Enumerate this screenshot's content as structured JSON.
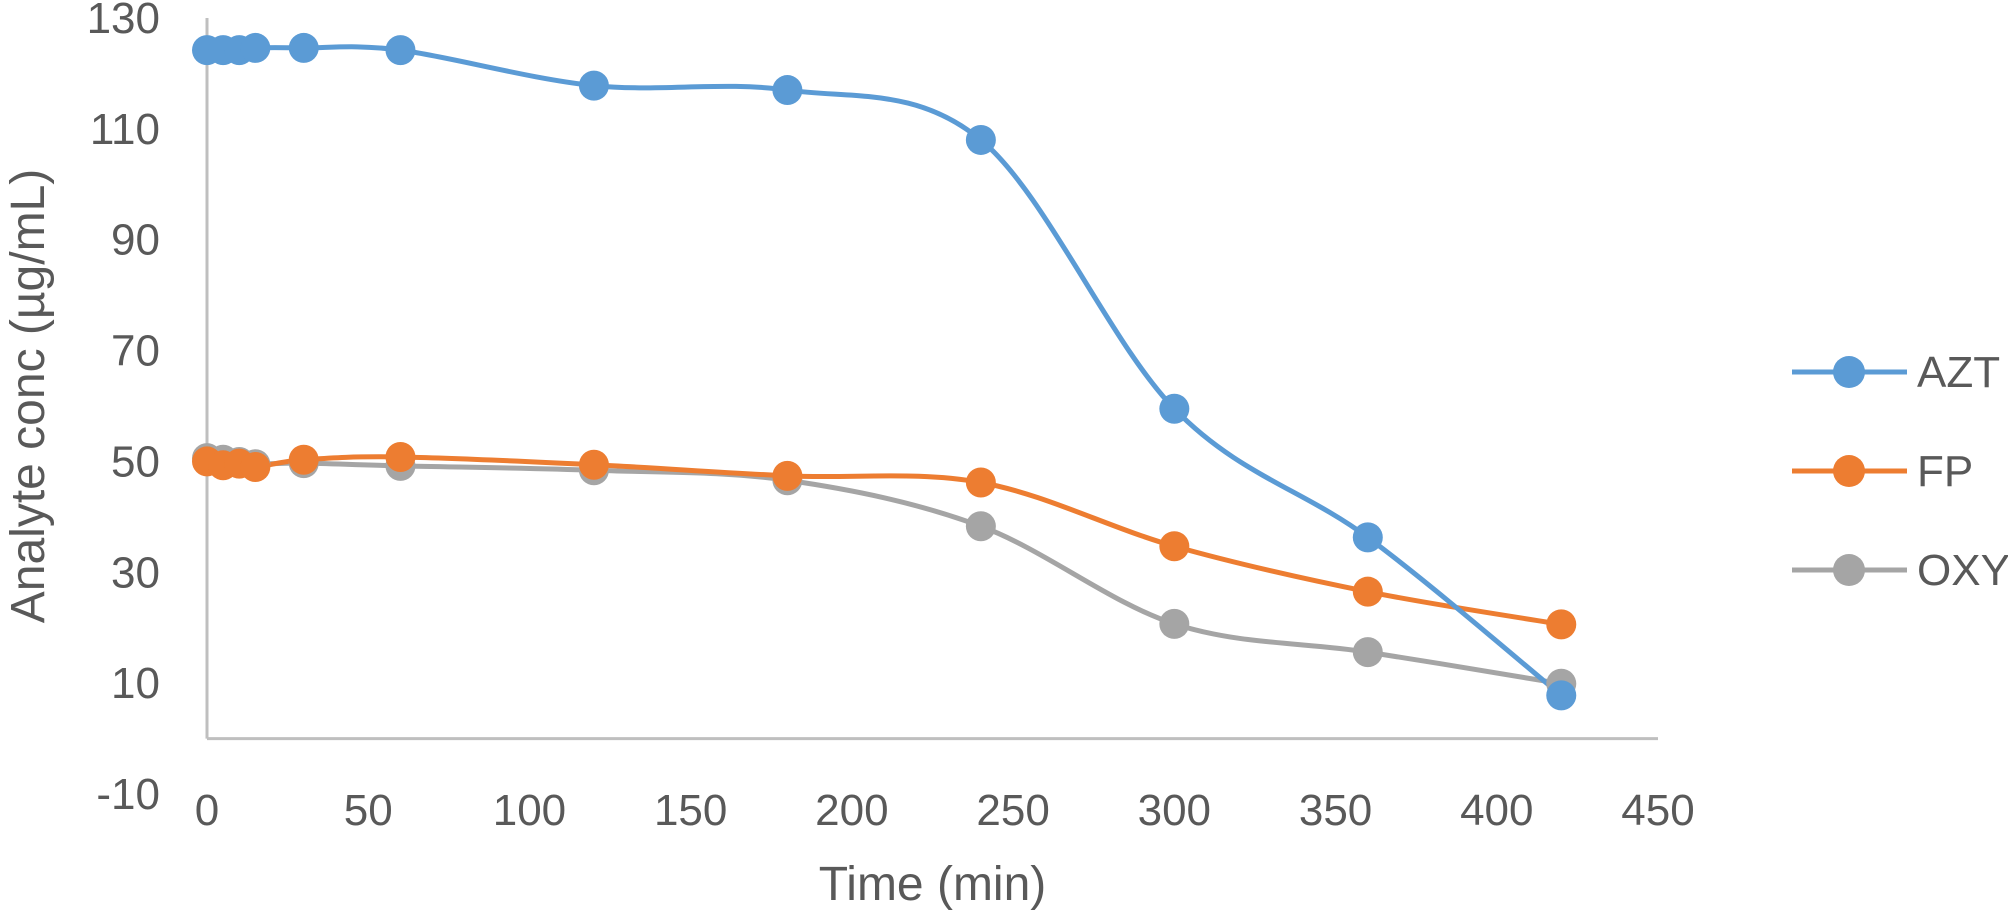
{
  "chart_data": {
    "type": "line",
    "title": "",
    "xlabel": "Time (min)",
    "ylabel": "Analyte conc (µg/mL)",
    "xlim": [
      0,
      450
    ],
    "ylim": [
      -10,
      130
    ],
    "x_ticks": [
      0,
      50,
      100,
      150,
      200,
      250,
      300,
      350,
      400,
      450
    ],
    "y_ticks": [
      -10,
      10,
      30,
      50,
      70,
      90,
      110,
      130
    ],
    "x_tick_labels": [
      "0",
      "50",
      "100",
      "150",
      "200",
      "250",
      "300",
      "350",
      "400",
      "450"
    ],
    "y_tick_labels": [
      "-10",
      "10",
      "30",
      "50",
      "70",
      "90",
      "110",
      "130"
    ],
    "x": [
      0,
      5,
      10,
      15,
      30,
      60,
      120,
      180,
      240,
      300,
      360,
      420
    ],
    "series": [
      {
        "name": "AZT",
        "color": "#5B9BD5",
        "values": [
          124.2,
          124.2,
          124.2,
          124.6,
          124.6,
          124.2,
          117.8,
          117.0,
          108.0,
          59.5,
          36.3,
          7.8
        ]
      },
      {
        "name": "FP",
        "color": "#ED7D31",
        "values": [
          50.0,
          49.3,
          49.6,
          49.0,
          50.3,
          50.8,
          49.4,
          47.4,
          46.2,
          34.7,
          26.5,
          20.6
        ]
      },
      {
        "name": "OXY",
        "color": "#A5A5A5",
        "values": [
          50.6,
          50.3,
          49.9,
          49.5,
          49.7,
          49.2,
          48.4,
          46.6,
          38.3,
          20.7,
          15.6,
          9.9
        ]
      }
    ],
    "legend_position": "right",
    "grid": false,
    "smooth": true,
    "axis_color": "#BFBFBF",
    "text_color": "#595959"
  }
}
